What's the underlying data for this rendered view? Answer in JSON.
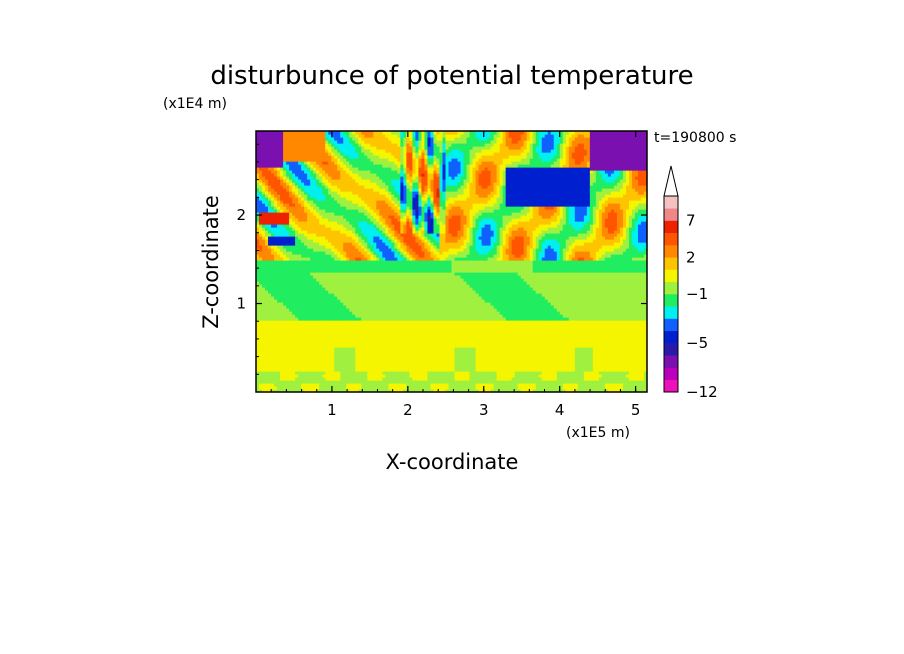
{
  "chart_data": {
    "type": "heatmap",
    "title": "disturbunce of potential temperature",
    "xlabel": "X-coordinate",
    "ylabel": "Z-coordinate",
    "x_unit": "(x1E5 m)",
    "y_unit": "(x1E4 m)",
    "time_label": "t=190800 s",
    "xlim": [
      0,
      5.15
    ],
    "ylim": [
      0,
      2.95
    ],
    "x_ticks": [
      "1",
      "2",
      "3",
      "4",
      "5"
    ],
    "y_ticks": [
      "1",
      "2"
    ],
    "colorbar": {
      "levels": [
        -12,
        -10,
        -8,
        -6,
        -5,
        -4,
        -3,
        -2,
        -1,
        0,
        1,
        2,
        3,
        5,
        7,
        9,
        11
      ],
      "labels": [
        "-12",
        "-5",
        "-1",
        "2",
        "7"
      ],
      "colors": [
        "#ee11bb",
        "#bb00bb",
        "#7a10b0",
        "#2a1aaa",
        "#0020d0",
        "#1060ff",
        "#00f0f0",
        "#20ee60",
        "#a0f040",
        "#f5f500",
        "#ffc400",
        "#ff8800",
        "#ff5500",
        "#ee2200",
        "#ee8888",
        "#f5c0c0"
      ],
      "extend": "max"
    },
    "grid": false
  }
}
